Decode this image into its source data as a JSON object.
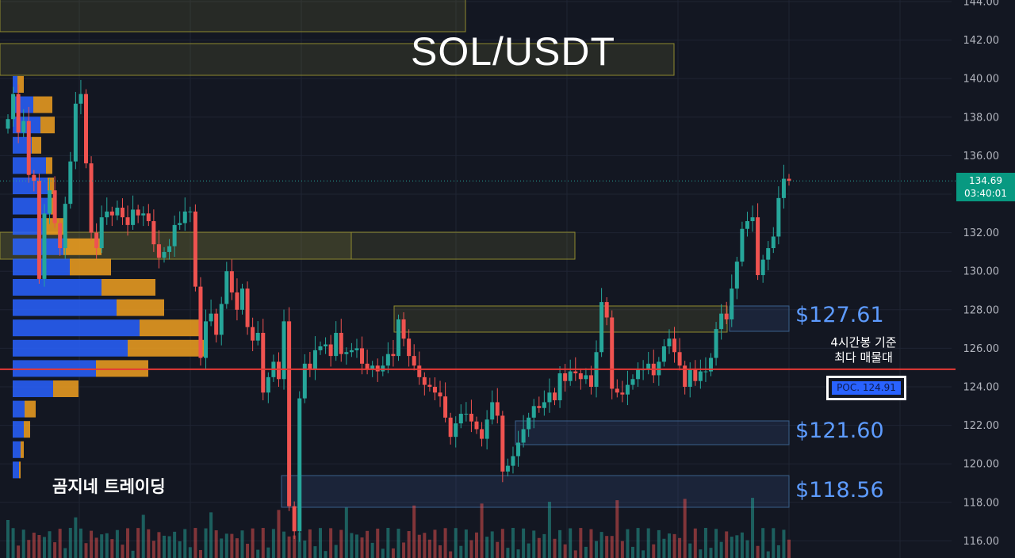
{
  "title": "SOL/USDT",
  "brand": "곰지네 트레이딩",
  "annotation": [
    "4시간봉 기준",
    "최다 매물대"
  ],
  "levels": [
    "$127.61",
    "$121.60",
    "$118.56"
  ],
  "poc_label": "POC. 124.91",
  "last_price": "134.69",
  "countdown": "03:40:01",
  "colors": {
    "background": "#131722",
    "up": "#26a69a",
    "down": "#ef5350",
    "poc_line": "#e53935",
    "profile_buy": "#2962ff",
    "profile_sell": "#f0a020",
    "level_text": "#5d9bff"
  },
  "chart_data": {
    "type": "candlestick",
    "title": "SOL/USDT",
    "y_axis_side": "right",
    "ylim": [
      115.5,
      144.2
    ],
    "y_ticks": [
      "116.00",
      "118.00",
      "120.00",
      "122.00",
      "124.00",
      "126.00",
      "128.00",
      "130.00",
      "132.00",
      "134.00",
      "136.00",
      "138.00",
      "140.00",
      "142.00",
      "144.00"
    ],
    "last_price": 134.69,
    "poc": 124.91,
    "annotated_levels": [
      127.61,
      121.6,
      118.56
    ],
    "closes": [
      137.9,
      139.2,
      137.2,
      137.8,
      135.0,
      134.7,
      129.6,
      133.0,
      134.2,
      132.5,
      131.2,
      133.5,
      135.7,
      138.7,
      139.2,
      135.6,
      132.0,
      131.2,
      132.8,
      133.1,
      132.9,
      133.3,
      132.8,
      132.4,
      133.2,
      132.9,
      133.0,
      132.6,
      131.4,
      130.7,
      131.0,
      131.3,
      132.4,
      132.5,
      133.1,
      133.1,
      129.2,
      125.5,
      127.4,
      127.8,
      126.7,
      128.3,
      130.0,
      128.9,
      128.0,
      129.1,
      127.1,
      126.4,
      126.8,
      123.7,
      124.5,
      125.3,
      124.4,
      127.4,
      117.8,
      116.5,
      123.4,
      125.2,
      124.9,
      125.9,
      126.1,
      126.2,
      125.6,
      126.8,
      125.7,
      125.8,
      125.9,
      126.0,
      125.2,
      124.9,
      125.1,
      124.8,
      125.1,
      125.7,
      125.6,
      127.5,
      126.5,
      125.6,
      125.1,
      124.5,
      124.1,
      124.0,
      123.7,
      123.5,
      122.4,
      121.4,
      122.1,
      122.6,
      122.6,
      122.2,
      121.8,
      121.3,
      122.3,
      123.2,
      122.5,
      119.6,
      119.9,
      120.4,
      121.1,
      121.8,
      122.4,
      123.0,
      122.9,
      123.2,
      123.7,
      123.3,
      124.7,
      124.3,
      124.8,
      124.7,
      124.4,
      124.6,
      124.0,
      125.8,
      128.4,
      127.6,
      123.9,
      123.7,
      123.6,
      124.1,
      124.4,
      124.9,
      124.9,
      125.2,
      124.6,
      125.3,
      126.1,
      126.5,
      125.8,
      125.1,
      124.0,
      124.9,
      124.3,
      124.8,
      124.8,
      125.5,
      127.0,
      127.8,
      127.5,
      129.1,
      130.5,
      132.2,
      132.6,
      132.8,
      129.8,
      130.6,
      131.2,
      131.8,
      133.8,
      134.8,
      134.7
    ]
  }
}
